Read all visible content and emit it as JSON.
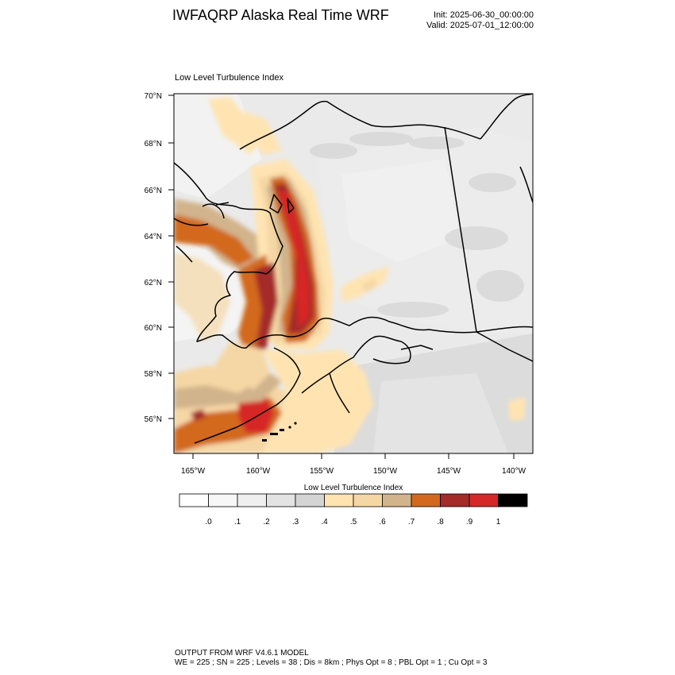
{
  "header": {
    "title": "IWFAQRP Alaska Real Time WRF",
    "init": "Init: 2025-06-30_00:00:00",
    "valid": "Valid: 2025-07-01_12:00:00"
  },
  "plot": {
    "title": "Low Level Turbulence Index",
    "lat_labels": [
      "70°N",
      "68°N",
      "66°N",
      "64°N",
      "62°N",
      "60°N",
      "58°N",
      "56°N"
    ],
    "lon_labels": [
      "165°W",
      "160°W",
      "155°W",
      "150°W",
      "145°W",
      "140°W"
    ]
  },
  "colorbar": {
    "title": "Low Level Turbulence Index",
    "colors": [
      "#ffffff",
      "#f7f7f7",
      "#efefef",
      "#e3e3e3",
      "#d4d4d4",
      "#ffe4b2",
      "#f5d7a5",
      "#d2b48c",
      "#d2691e",
      "#a52a2a",
      "#d62828",
      "#000000"
    ],
    "labels": [
      ".0",
      ".1",
      ".2",
      ".3",
      ".4",
      ".5",
      ".6",
      ".7",
      ".8",
      ".9",
      "1"
    ]
  },
  "footer": {
    "line1": "OUTPUT FROM WRF V4.6.1 MODEL",
    "line2": "WE = 225 ; SN = 225 ; Levels = 38 ; Dis = 8km ; Phys Opt = 8 ; PBL Opt = 1 ; Cu Opt = 3"
  }
}
